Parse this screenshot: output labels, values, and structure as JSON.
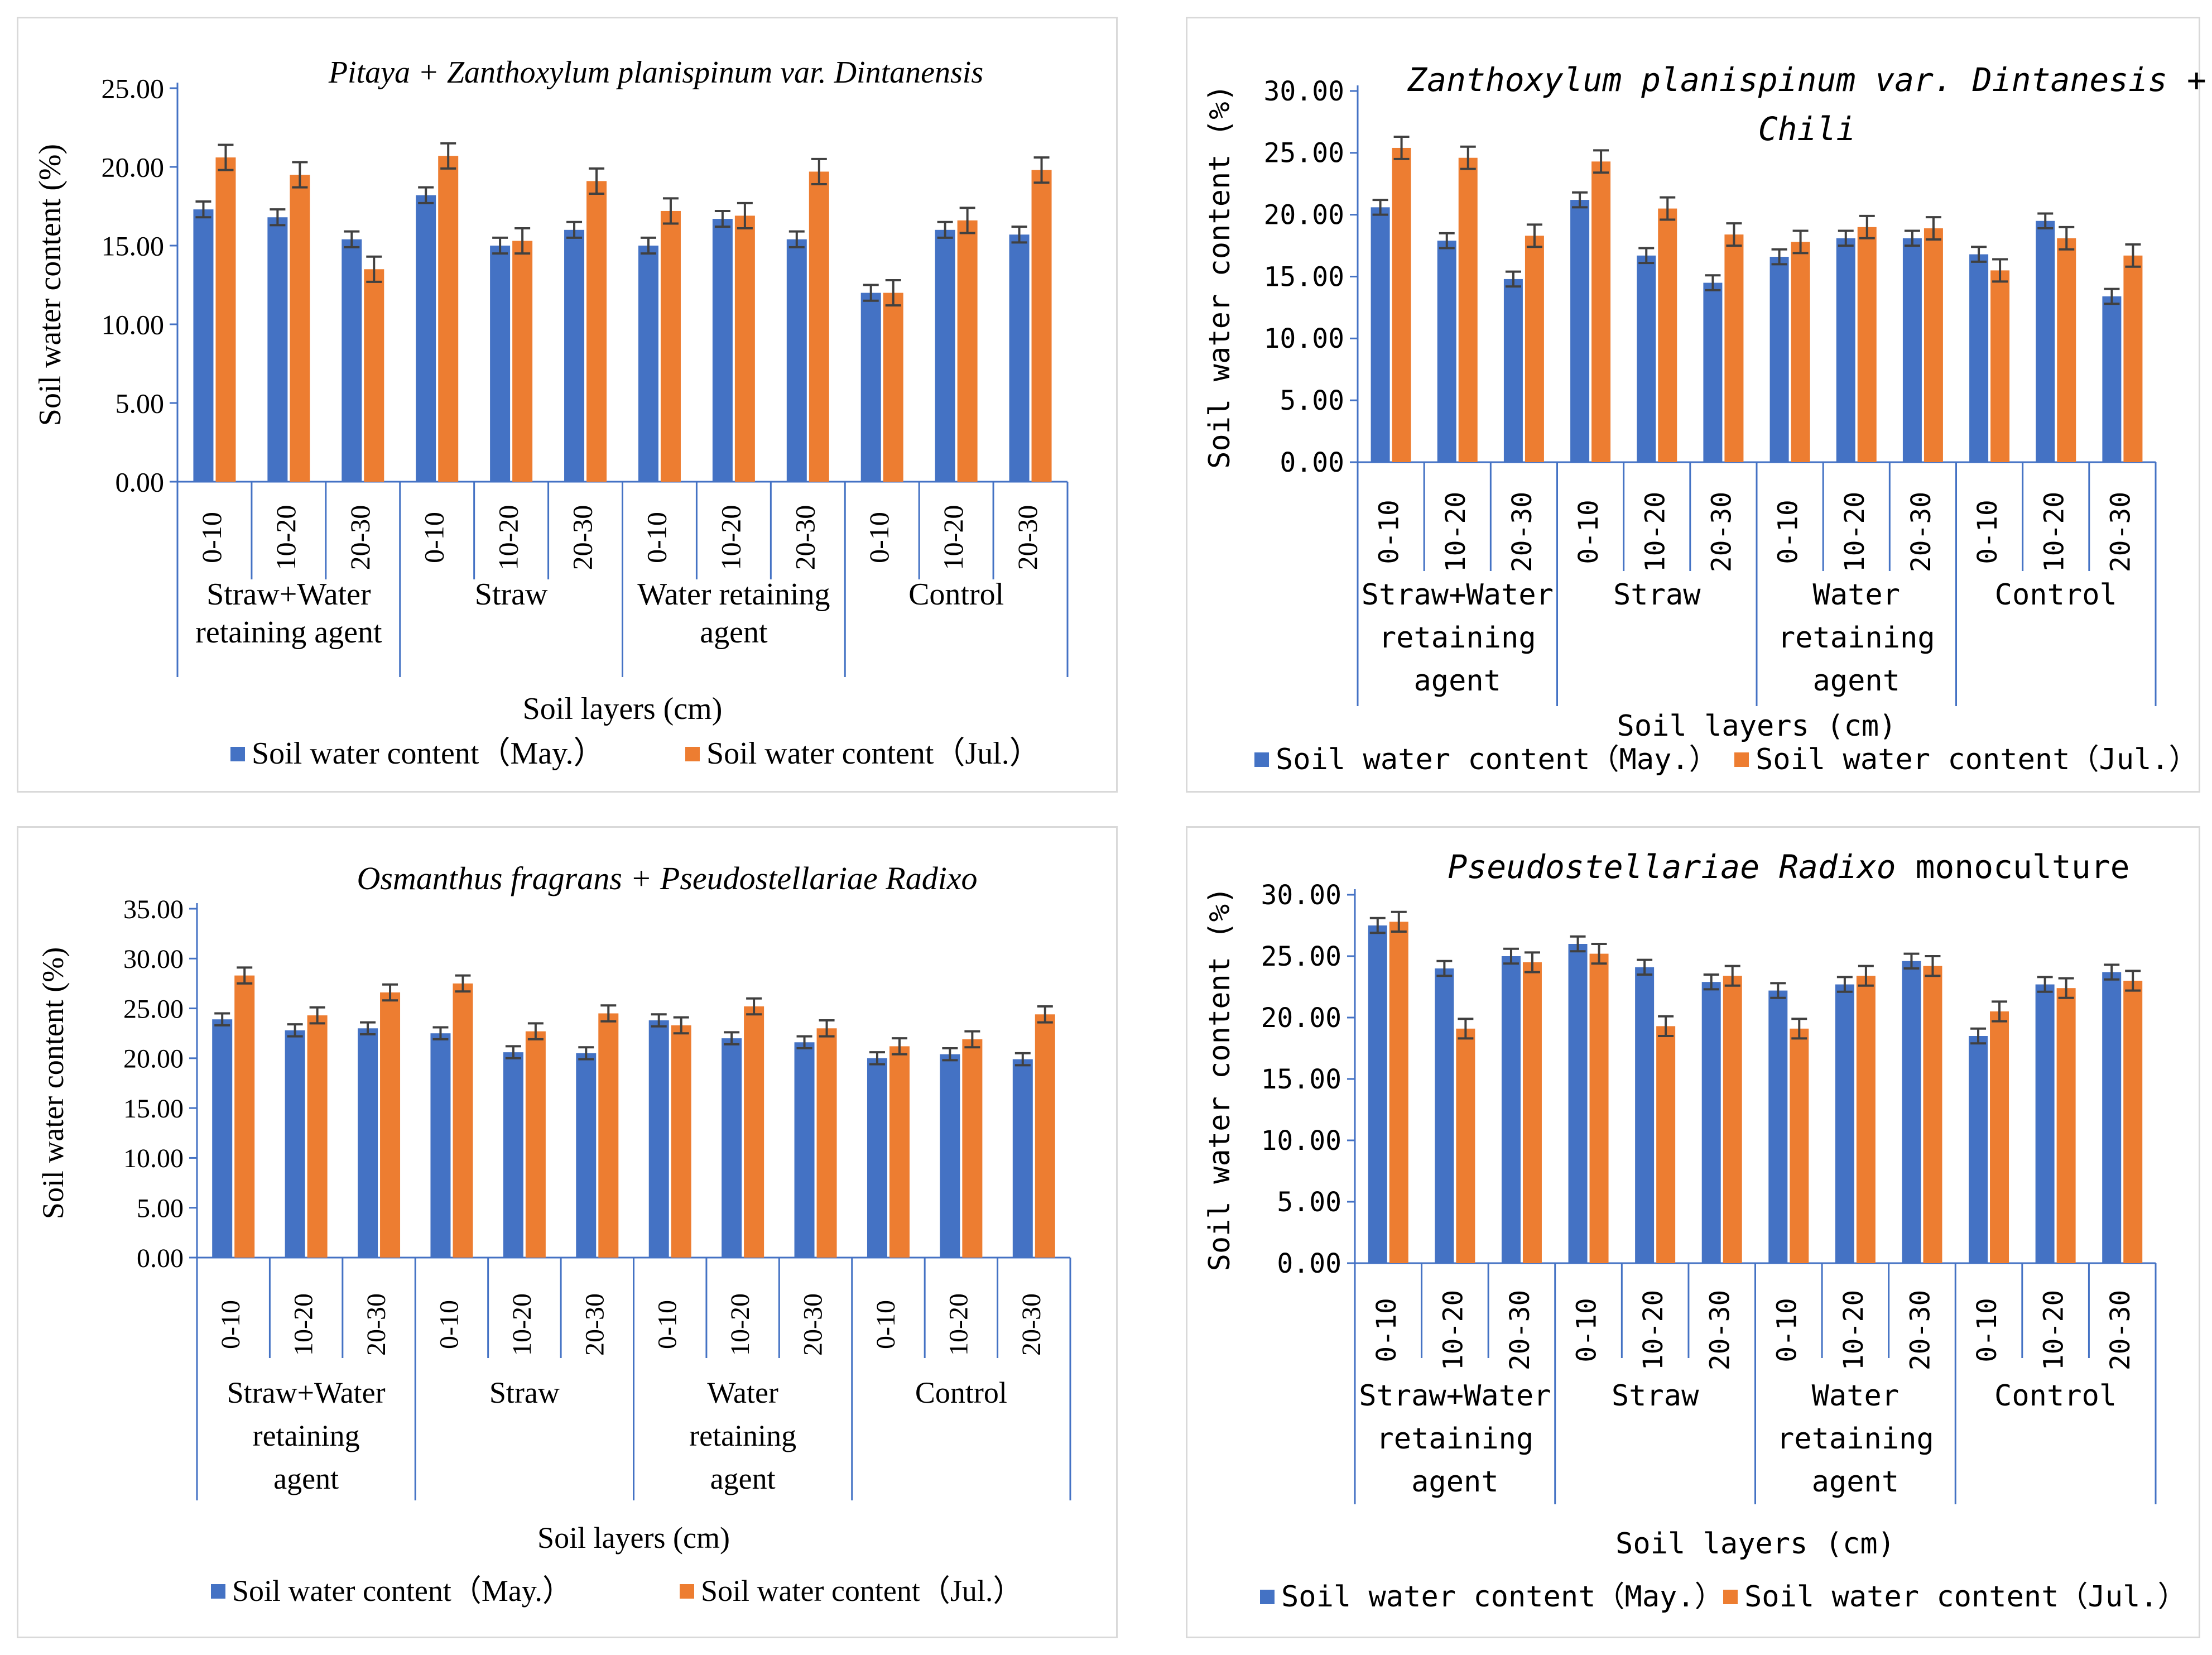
{
  "colors": {
    "may": "#4472C4",
    "jul": "#ED7D31",
    "axis": "#4472C4",
    "error": "#404040",
    "text": "#000000",
    "border": "#D9D9D9"
  },
  "chart_data": [
    {
      "type": "bar",
      "title_parts": [
        {
          "text": "Pitaya + Zanthoxylum planispinum var. Dintanensis",
          "italic": true
        }
      ],
      "ylabel": "Soil water content (%)",
      "xlabel": "Soil layers (cm)",
      "ylim": [
        0,
        25
      ],
      "yticks": [
        "0.00",
        "5.00",
        "10.00",
        "15.00",
        "20.00",
        "25.00"
      ],
      "categories": [
        "0-10",
        "10-20",
        "20-30",
        "0-10",
        "10-20",
        "20-30",
        "0-10",
        "10-20",
        "20-30",
        "0-10",
        "10-20",
        "20-30"
      ],
      "groups": [
        "Straw+Water retaining agent",
        "Straw",
        "Water retaining agent",
        "Control"
      ],
      "series": [
        {
          "name": "Soil water content（May.）",
          "values": [
            17.3,
            16.8,
            15.4,
            18.2,
            15.0,
            16.0,
            15.0,
            16.7,
            15.4,
            12.0,
            16.0,
            15.7
          ],
          "errors": [
            0.5,
            0.5,
            0.5,
            0.5,
            0.5,
            0.5,
            0.5,
            0.5,
            0.5,
            0.5,
            0.5,
            0.5
          ]
        },
        {
          "name": "Soil water content（Jul.）",
          "values": [
            20.6,
            19.5,
            13.5,
            20.7,
            15.3,
            19.1,
            17.2,
            16.9,
            19.7,
            12.0,
            16.6,
            19.8
          ],
          "errors": [
            0.8,
            0.8,
            0.8,
            0.8,
            0.8,
            0.8,
            0.8,
            0.8,
            0.8,
            0.8,
            0.8,
            0.8
          ]
        }
      ]
    },
    {
      "type": "bar",
      "title_parts": [
        {
          "text": "Zanthoxylum planispinum var. Dintanesis +",
          "italic": true
        },
        {
          "text": "Chili",
          "italic": true
        }
      ],
      "ylabel": "Soil water content (%)",
      "xlabel": "Soil layers (cm)",
      "ylim": [
        0,
        30
      ],
      "yticks": [
        "0.00",
        "5.00",
        "10.00",
        "15.00",
        "20.00",
        "25.00",
        "30.00"
      ],
      "categories": [
        "0-10",
        "10-20",
        "20-30",
        "0-10",
        "10-20",
        "20-30",
        "0-10",
        "10-20",
        "20-30",
        "0-10",
        "10-20",
        "20-30"
      ],
      "groups": [
        "Straw+Water retaining agent",
        "Straw",
        "Water retaining agent",
        "Control"
      ],
      "series": [
        {
          "name": "Soil water content（May.）",
          "values": [
            20.6,
            17.9,
            14.8,
            21.2,
            16.7,
            14.5,
            16.6,
            18.1,
            18.1,
            16.8,
            19.5,
            13.4
          ],
          "errors": [
            0.6,
            0.6,
            0.6,
            0.6,
            0.6,
            0.6,
            0.6,
            0.6,
            0.6,
            0.6,
            0.6,
            0.6
          ]
        },
        {
          "name": "Soil water content（Jul.）",
          "values": [
            25.4,
            24.6,
            18.3,
            24.3,
            20.5,
            18.4,
            17.8,
            19.0,
            18.9,
            15.5,
            18.1,
            16.7
          ],
          "errors": [
            0.9,
            0.9,
            0.9,
            0.9,
            0.9,
            0.9,
            0.9,
            0.9,
            0.9,
            0.9,
            0.9,
            0.9
          ]
        }
      ]
    },
    {
      "type": "bar",
      "title_parts": [
        {
          "text": "Osmanthus fragrans + Pseudostellariae Radixo",
          "italic": true
        }
      ],
      "ylabel": "Soil water content (%)",
      "xlabel": "Soil layers (cm)",
      "ylim": [
        0,
        35
      ],
      "yticks": [
        "0.00",
        "5.00",
        "10.00",
        "15.00",
        "20.00",
        "25.00",
        "30.00",
        "35.00"
      ],
      "categories": [
        "0-10",
        "10-20",
        "20-30",
        "0-10",
        "10-20",
        "20-30",
        "0-10",
        "10-20",
        "20-30",
        "0-10",
        "10-20",
        "20-30"
      ],
      "groups": [
        "Straw+Water retaining agent",
        "Straw",
        "Water retaining agent",
        "Control"
      ],
      "series": [
        {
          "name": "Soil water content（May.）",
          "values": [
            23.9,
            22.8,
            23.0,
            22.5,
            20.6,
            20.5,
            23.8,
            22.0,
            21.6,
            20.0,
            20.4,
            19.9
          ],
          "errors": [
            0.6,
            0.6,
            0.6,
            0.6,
            0.6,
            0.6,
            0.6,
            0.6,
            0.6,
            0.6,
            0.6,
            0.6
          ]
        },
        {
          "name": "Soil water content（Jul.）",
          "values": [
            28.3,
            24.3,
            26.6,
            27.5,
            22.7,
            24.5,
            23.3,
            25.2,
            23.0,
            21.2,
            21.9,
            24.4
          ],
          "errors": [
            0.8,
            0.8,
            0.8,
            0.8,
            0.8,
            0.8,
            0.8,
            0.8,
            0.8,
            0.8,
            0.8,
            0.8
          ]
        }
      ]
    },
    {
      "type": "bar",
      "title_parts": [
        {
          "text": "Pseudostellariae Radixo",
          "italic": true
        },
        {
          "text": " monoculture",
          "italic": false
        }
      ],
      "ylabel": "Soil water content (%)",
      "xlabel": "Soil layers (cm)",
      "ylim": [
        0,
        30
      ],
      "yticks": [
        "0.00",
        "5.00",
        "10.00",
        "15.00",
        "20.00",
        "25.00",
        "30.00"
      ],
      "categories": [
        "0-10",
        "10-20",
        "20-30",
        "0-10",
        "10-20",
        "20-30",
        "0-10",
        "10-20",
        "20-30",
        "0-10",
        "10-20",
        "20-30"
      ],
      "groups": [
        "Straw+Water retaining agent",
        "Straw",
        "Water retaining agent",
        "Control"
      ],
      "series": [
        {
          "name": "Soil water content（May.）",
          "values": [
            27.5,
            24.0,
            25.0,
            26.0,
            24.1,
            22.9,
            22.2,
            22.7,
            24.6,
            18.5,
            22.7,
            23.7
          ],
          "errors": [
            0.6,
            0.6,
            0.6,
            0.6,
            0.6,
            0.6,
            0.6,
            0.6,
            0.6,
            0.6,
            0.6,
            0.6
          ]
        },
        {
          "name": "Soil water content（Jul.）",
          "values": [
            27.8,
            19.1,
            24.5,
            25.2,
            19.3,
            23.4,
            19.1,
            23.4,
            24.2,
            20.5,
            22.4,
            23.0
          ],
          "errors": [
            0.8,
            0.8,
            0.8,
            0.8,
            0.8,
            0.8,
            0.8,
            0.8,
            0.8,
            0.8,
            0.8,
            0.8
          ]
        }
      ]
    }
  ]
}
